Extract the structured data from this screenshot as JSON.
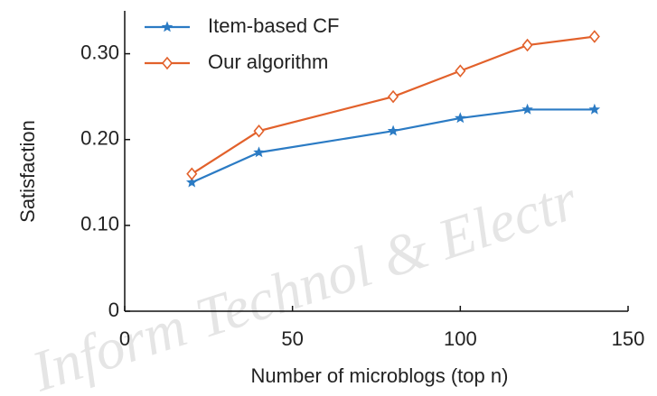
{
  "chart_data": {
    "type": "line",
    "xlabel": "Number of microblogs (top n)",
    "ylabel": "Satisfaction",
    "watermark": "Inform Technol & Electr",
    "x": [
      20,
      40,
      80,
      100,
      120,
      140
    ],
    "series": [
      {
        "name": "Item-based CF",
        "color": "#2b7bc4",
        "marker": "star",
        "values": [
          0.15,
          0.185,
          0.21,
          0.225,
          0.235,
          0.235
        ]
      },
      {
        "name": "Our algorithm",
        "color": "#e2612b",
        "marker": "diamond",
        "values": [
          0.16,
          0.21,
          0.25,
          0.28,
          0.31,
          0.32
        ]
      }
    ],
    "xlim": [
      0,
      150
    ],
    "xticks": [
      0,
      50,
      100,
      150
    ],
    "ylim": [
      0,
      0.35
    ],
    "yticks": [
      0,
      {
        "value": 0.1,
        "label": "0.10"
      },
      {
        "value": 0.2,
        "label": "0.20"
      },
      {
        "value": 0.3,
        "label": "0.30"
      }
    ],
    "legend": "upper left"
  }
}
